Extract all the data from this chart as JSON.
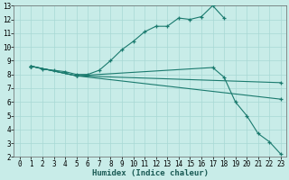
{
  "xlabel": "Humidex (Indice chaleur)",
  "bg_color": "#c8ece8",
  "grid_color": "#a8d8d4",
  "line_color": "#1a7a6e",
  "xlim": [
    -0.5,
    23.5
  ],
  "ylim": [
    2,
    13
  ],
  "xticks": [
    0,
    1,
    2,
    3,
    4,
    5,
    6,
    7,
    8,
    9,
    10,
    11,
    12,
    13,
    14,
    15,
    16,
    17,
    18,
    19,
    20,
    21,
    22,
    23
  ],
  "yticks": [
    2,
    3,
    4,
    5,
    6,
    7,
    8,
    9,
    10,
    11,
    12,
    13
  ],
  "line1_x": [
    1,
    2,
    3,
    4,
    5,
    6,
    7,
    8,
    9,
    10,
    11,
    12,
    13,
    14,
    15,
    16,
    17,
    18
  ],
  "line1_y": [
    8.6,
    8.4,
    8.3,
    8.2,
    8.0,
    8.0,
    8.3,
    9.0,
    9.8,
    10.4,
    11.1,
    11.5,
    11.5,
    12.1,
    12.0,
    12.2,
    13.0,
    12.1
  ],
  "line2_x": [
    1,
    5,
    17,
    18,
    19,
    20,
    21,
    22,
    23
  ],
  "line2_y": [
    8.6,
    7.9,
    8.5,
    7.8,
    6.0,
    5.0,
    3.7,
    3.1,
    2.2
  ],
  "line3_x": [
    1,
    5,
    23
  ],
  "line3_y": [
    8.6,
    7.9,
    6.2
  ],
  "line4_x": [
    1,
    5,
    23
  ],
  "line4_y": [
    8.6,
    7.9,
    7.4
  ],
  "xlabel_fontsize": 6.5,
  "tick_fontsize": 5.5
}
